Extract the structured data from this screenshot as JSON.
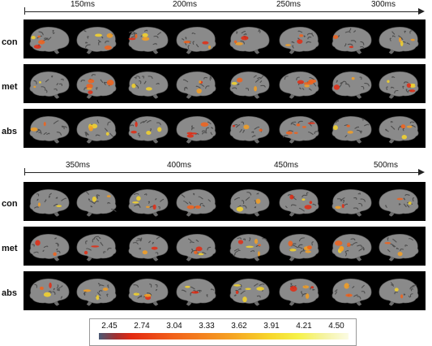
{
  "panels": [
    {
      "time_ticks": [
        "150ms",
        "200ms",
        "250ms",
        "300ms"
      ],
      "rows": [
        {
          "label": "con"
        },
        {
          "label": "met"
        },
        {
          "label": "abs"
        }
      ]
    },
    {
      "time_ticks": [
        "350ms",
        "400ms",
        "450ms",
        "500ms"
      ],
      "rows": [
        {
          "label": "con"
        },
        {
          "label": "met"
        },
        {
          "label": "abs"
        }
      ]
    }
  ],
  "colorbar": {
    "labels": [
      "2.45",
      "2.74",
      "3.04",
      "3.33",
      "3.62",
      "3.91",
      "4.21",
      "4.50"
    ],
    "colors": [
      "#4a5a76",
      "#a33030",
      "#e32a12",
      "#f2621a",
      "#f59f22",
      "#f7d52a",
      "#f6f24a",
      "#fbfbe4"
    ]
  }
}
